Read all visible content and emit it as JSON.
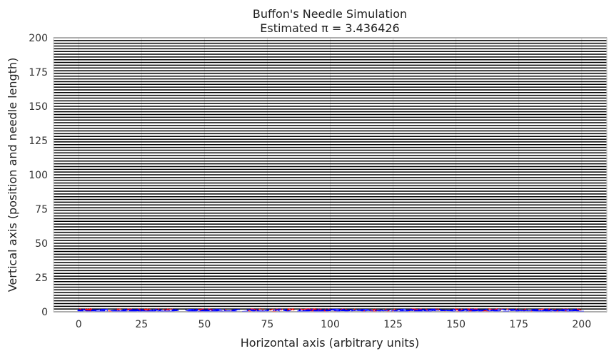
{
  "chart_data": {
    "type": "line",
    "title": "Buffon's Needle Simulation",
    "subtitle": "Estimated π = 3.436426",
    "xlabel": "Horizontal axis (arbitrary units)",
    "ylabel": "Vertical axis (position and needle length)",
    "xlim": [
      -10,
      210
    ],
    "ylim": [
      0,
      200
    ],
    "xticks": [
      0,
      25,
      50,
      75,
      100,
      125,
      150,
      175,
      200
    ],
    "yticks": [
      0,
      25,
      50,
      75,
      100,
      125,
      150,
      175,
      200
    ],
    "grid": true,
    "line_spacing": 2,
    "series": [
      {
        "kind": "parallel-lines",
        "color": "#000000"
      },
      {
        "kind": "needles-not-crossing",
        "color": "#0000ff"
      },
      {
        "kind": "needles-crossing",
        "color": "#ff0000"
      }
    ],
    "colors": {
      "background": "#ffffff",
      "grid": "#d9d9d9",
      "frame": "#cccccc",
      "lines": "#000000",
      "needle": "#0000ff",
      "crossing": "#ff0000"
    }
  }
}
